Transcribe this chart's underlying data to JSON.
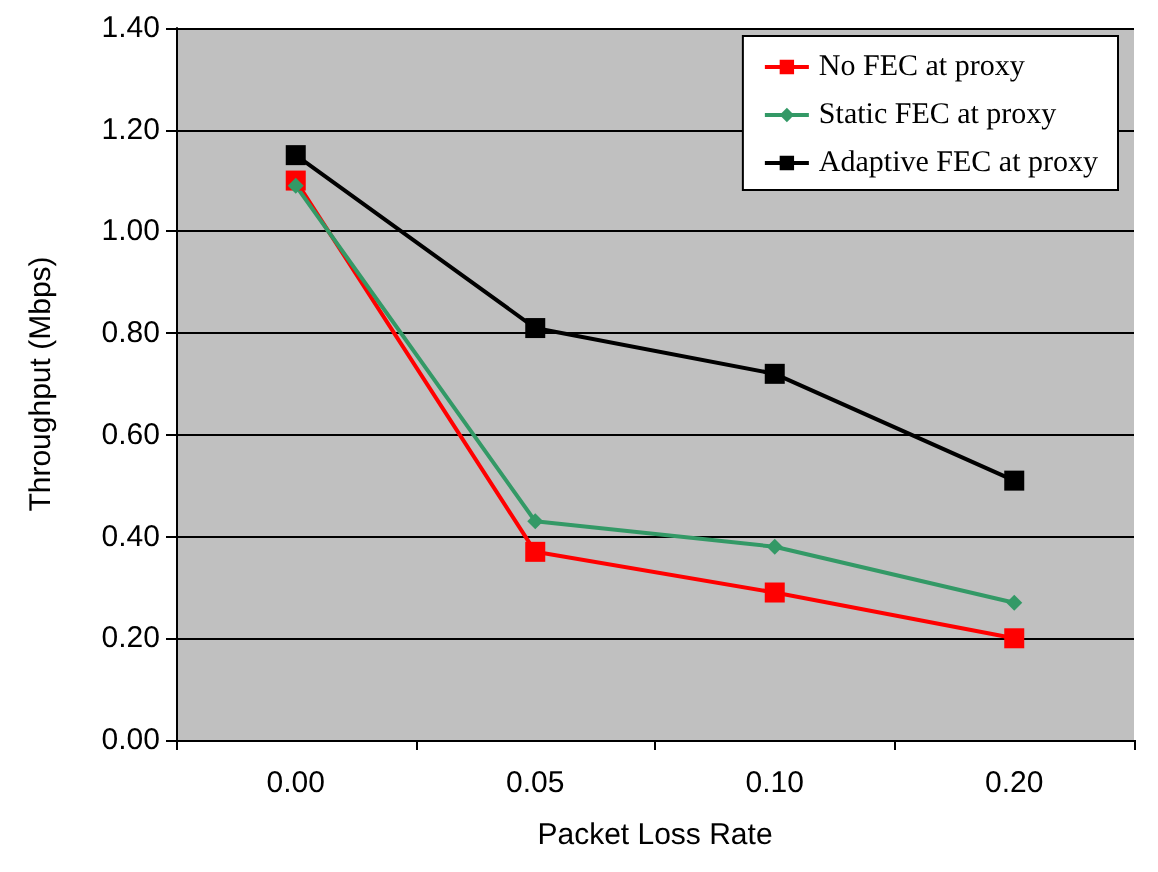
{
  "chart_data": {
    "type": "line",
    "xlabel": "Packet Loss Rate",
    "ylabel": "Throughput (Mbps)",
    "categories": [
      "0.00",
      "0.05",
      "0.10",
      "0.20"
    ],
    "series": [
      {
        "name": "No FEC at proxy",
        "color": "#ff0000",
        "marker": "square",
        "values": [
          1.1,
          0.37,
          0.29,
          0.2
        ]
      },
      {
        "name": "Static FEC at proxy",
        "color": "#339966",
        "marker": "diamond",
        "values": [
          1.09,
          0.43,
          0.38,
          0.27
        ]
      },
      {
        "name": "Adaptive FEC at proxy",
        "color": "#000000",
        "marker": "square",
        "values": [
          1.15,
          0.81,
          0.72,
          0.51
        ]
      }
    ],
    "ylim": [
      0,
      1.4
    ],
    "yticks": [
      {
        "value": 0,
        "label": "0.00"
      },
      {
        "value": 0.2,
        "label": "0.20"
      },
      {
        "value": 0.4,
        "label": "0.40"
      },
      {
        "value": 0.6,
        "label": "0.60"
      },
      {
        "value": 0.8,
        "label": "0.80"
      },
      {
        "value": 1.0,
        "label": "1.00"
      },
      {
        "value": 1.2,
        "label": "1.20"
      },
      {
        "value": 1.4,
        "label": "1.40"
      }
    ],
    "grid": "y",
    "legend": "top right"
  }
}
